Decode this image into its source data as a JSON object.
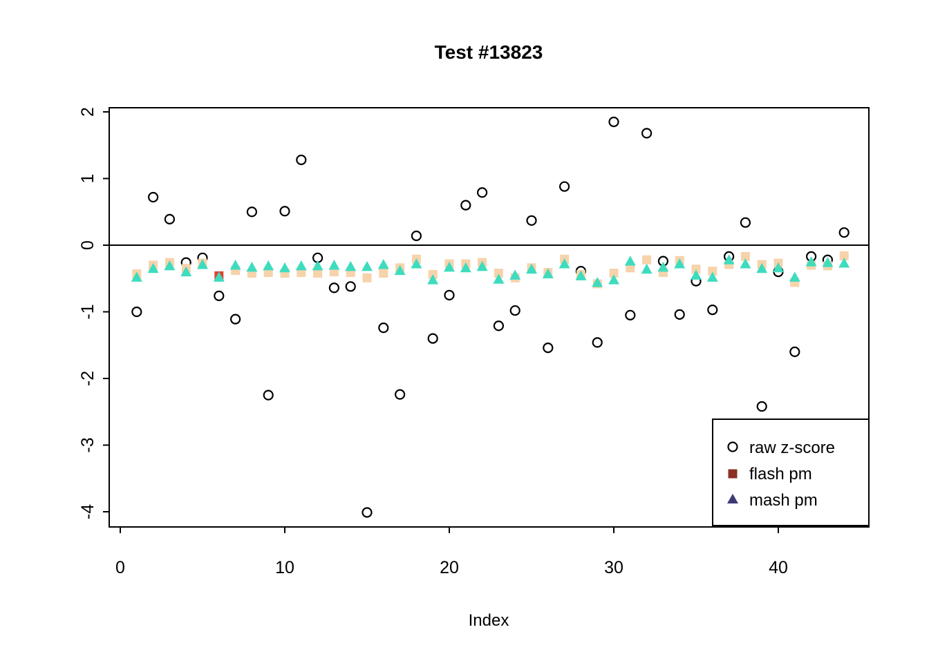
{
  "chart_data": {
    "type": "scatter",
    "title": "Test #13823",
    "xlabel": "Index",
    "ylabel": "",
    "x_ticks": [
      0,
      10,
      20,
      30,
      40
    ],
    "y_ticks": [
      -4,
      -3,
      -2,
      -1,
      0,
      1,
      2
    ],
    "xlim": [
      -0.7,
      45.5
    ],
    "ylim": [
      -4.23,
      2.06
    ],
    "grid": false,
    "hline_y": 0,
    "x": [
      1,
      2,
      3,
      4,
      5,
      6,
      7,
      8,
      9,
      10,
      11,
      12,
      13,
      14,
      15,
      16,
      17,
      18,
      19,
      20,
      21,
      22,
      23,
      24,
      25,
      26,
      27,
      28,
      29,
      30,
      31,
      32,
      33,
      34,
      35,
      36,
      37,
      38,
      39,
      40,
      41,
      42,
      43,
      44
    ],
    "series": [
      {
        "name": "raw z-score",
        "marker": "open-circle",
        "color": "#000000",
        "values": [
          -1.0,
          0.72,
          0.39,
          -0.26,
          -0.19,
          -0.76,
          -1.11,
          0.5,
          -2.25,
          0.51,
          1.28,
          -0.19,
          -0.64,
          -0.62,
          -4.01,
          -1.24,
          -2.24,
          0.14,
          -1.4,
          -0.75,
          0.6,
          0.79,
          -1.21,
          -0.98,
          0.37,
          -1.54,
          0.88,
          -0.39,
          -1.46,
          1.85,
          -1.05,
          1.68,
          -0.24,
          -1.04,
          -0.54,
          -0.97,
          -0.17,
          0.34,
          -2.42,
          -0.4,
          -1.6,
          -0.17,
          -0.22,
          0.19
        ]
      },
      {
        "name": "flash pm",
        "marker": "filled-square",
        "color": "#f6d3ab",
        "legend_color": "#8b3023",
        "values": [
          -0.43,
          -0.3,
          -0.26,
          -0.35,
          -0.27,
          -0.46,
          -0.38,
          -0.42,
          -0.41,
          -0.42,
          -0.41,
          -0.42,
          -0.4,
          -0.41,
          -0.49,
          -0.42,
          -0.34,
          -0.21,
          -0.44,
          -0.28,
          -0.28,
          -0.26,
          -0.42,
          -0.49,
          -0.34,
          -0.41,
          -0.21,
          -0.44,
          -0.58,
          -0.42,
          -0.34,
          -0.22,
          -0.41,
          -0.23,
          -0.36,
          -0.39,
          -0.29,
          -0.17,
          -0.29,
          -0.27,
          -0.56,
          -0.3,
          -0.31,
          -0.16
        ]
      },
      {
        "name": "mash pm",
        "marker": "filled-triangle",
        "color": "#3edcbe",
        "legend_color": "#3b3a76",
        "values": [
          -0.48,
          -0.35,
          -0.31,
          -0.4,
          -0.29,
          -0.48,
          -0.3,
          -0.33,
          -0.31,
          -0.34,
          -0.31,
          -0.31,
          -0.3,
          -0.32,
          -0.32,
          -0.29,
          -0.38,
          -0.28,
          -0.52,
          -0.33,
          -0.34,
          -0.32,
          -0.51,
          -0.45,
          -0.36,
          -0.43,
          -0.28,
          -0.46,
          -0.56,
          -0.52,
          -0.24,
          -0.36,
          -0.33,
          -0.28,
          -0.45,
          -0.48,
          -0.22,
          -0.28,
          -0.35,
          -0.34,
          -0.48,
          -0.25,
          -0.26,
          -0.27
        ]
      }
    ],
    "flash_highlight": {
      "index": 6,
      "color": "#e0442e"
    },
    "legend": {
      "position": "bottom-right",
      "entries": [
        {
          "label": "raw z-score",
          "marker": "open-circle",
          "color": "#000000"
        },
        {
          "label": "flash pm",
          "marker": "filled-square",
          "color": "#8b3023"
        },
        {
          "label": "mash pm",
          "marker": "filled-triangle",
          "color": "#3b3a76"
        }
      ]
    },
    "axis_color": "#000000",
    "background": "#ffffff"
  }
}
